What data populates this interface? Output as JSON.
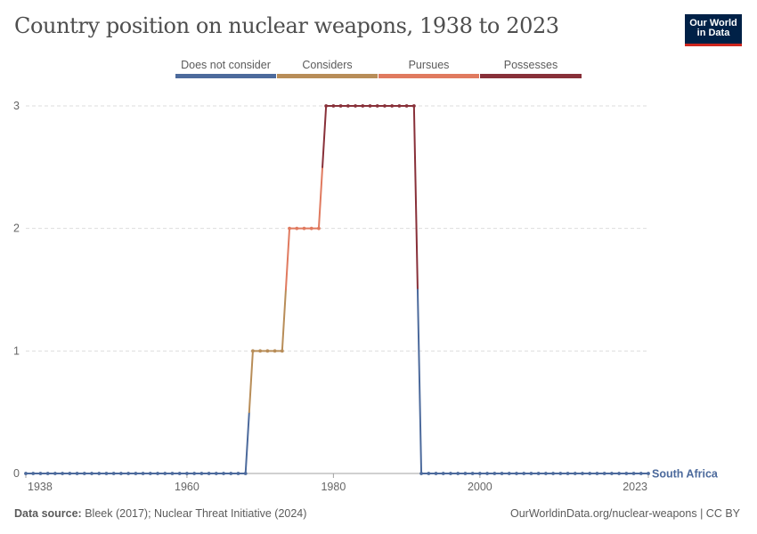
{
  "header": {
    "title": "Country position on nuclear weapons, 1938 to 2023"
  },
  "logo": {
    "line1": "Our World",
    "line2": "in Data",
    "bg_color": "#002147",
    "accent_color": "#ce261e"
  },
  "legend": {
    "items": [
      {
        "label": "Does not consider",
        "color": "#4c6a9c"
      },
      {
        "label": "Considers",
        "color": "#b88d58"
      },
      {
        "label": "Pursues",
        "color": "#e07a5f"
      },
      {
        "label": "Possesses",
        "color": "#883039"
      }
    ]
  },
  "footer": {
    "source_label": "Data source:",
    "source_text": " Bleek (2017); Nuclear Threat Initiative (2024)",
    "link_text": "OurWorldinData.org/nuclear-weapons",
    "license_text": " | CC BY"
  },
  "chart_data": {
    "type": "line",
    "title": "Country position on nuclear weapons, 1938 to 2023",
    "xlabel": "",
    "ylabel": "",
    "xlim": [
      1938,
      2023
    ],
    "ylim": [
      0,
      3
    ],
    "x_ticks": [
      "1938",
      "1960",
      "1980",
      "2000",
      "2023"
    ],
    "y_ticks": [
      "0",
      "1",
      "2",
      "3"
    ],
    "grid": "horizontal dashed",
    "legend_position": "top",
    "category_colors": [
      "#4c6a9c",
      "#b88d58",
      "#e07a5f",
      "#883039"
    ],
    "series": [
      {
        "name": "South Africa",
        "label_color": "#4c6a9c",
        "points": [
          {
            "x": 1938,
            "y": 0
          },
          {
            "x": 1939,
            "y": 0
          },
          {
            "x": 1940,
            "y": 0
          },
          {
            "x": 1941,
            "y": 0
          },
          {
            "x": 1942,
            "y": 0
          },
          {
            "x": 1943,
            "y": 0
          },
          {
            "x": 1944,
            "y": 0
          },
          {
            "x": 1945,
            "y": 0
          },
          {
            "x": 1946,
            "y": 0
          },
          {
            "x": 1947,
            "y": 0
          },
          {
            "x": 1948,
            "y": 0
          },
          {
            "x": 1949,
            "y": 0
          },
          {
            "x": 1950,
            "y": 0
          },
          {
            "x": 1951,
            "y": 0
          },
          {
            "x": 1952,
            "y": 0
          },
          {
            "x": 1953,
            "y": 0
          },
          {
            "x": 1954,
            "y": 0
          },
          {
            "x": 1955,
            "y": 0
          },
          {
            "x": 1956,
            "y": 0
          },
          {
            "x": 1957,
            "y": 0
          },
          {
            "x": 1958,
            "y": 0
          },
          {
            "x": 1959,
            "y": 0
          },
          {
            "x": 1960,
            "y": 0
          },
          {
            "x": 1961,
            "y": 0
          },
          {
            "x": 1962,
            "y": 0
          },
          {
            "x": 1963,
            "y": 0
          },
          {
            "x": 1964,
            "y": 0
          },
          {
            "x": 1965,
            "y": 0
          },
          {
            "x": 1966,
            "y": 0
          },
          {
            "x": 1967,
            "y": 0
          },
          {
            "x": 1968,
            "y": 0
          },
          {
            "x": 1969,
            "y": 1
          },
          {
            "x": 1970,
            "y": 1
          },
          {
            "x": 1971,
            "y": 1
          },
          {
            "x": 1972,
            "y": 1
          },
          {
            "x": 1973,
            "y": 1
          },
          {
            "x": 1974,
            "y": 2
          },
          {
            "x": 1975,
            "y": 2
          },
          {
            "x": 1976,
            "y": 2
          },
          {
            "x": 1977,
            "y": 2
          },
          {
            "x": 1978,
            "y": 2
          },
          {
            "x": 1979,
            "y": 3
          },
          {
            "x": 1980,
            "y": 3
          },
          {
            "x": 1981,
            "y": 3
          },
          {
            "x": 1982,
            "y": 3
          },
          {
            "x": 1983,
            "y": 3
          },
          {
            "x": 1984,
            "y": 3
          },
          {
            "x": 1985,
            "y": 3
          },
          {
            "x": 1986,
            "y": 3
          },
          {
            "x": 1987,
            "y": 3
          },
          {
            "x": 1988,
            "y": 3
          },
          {
            "x": 1989,
            "y": 3
          },
          {
            "x": 1990,
            "y": 3
          },
          {
            "x": 1991,
            "y": 3
          },
          {
            "x": 1992,
            "y": 0
          },
          {
            "x": 1993,
            "y": 0
          },
          {
            "x": 1994,
            "y": 0
          },
          {
            "x": 1995,
            "y": 0
          },
          {
            "x": 1996,
            "y": 0
          },
          {
            "x": 1997,
            "y": 0
          },
          {
            "x": 1998,
            "y": 0
          },
          {
            "x": 1999,
            "y": 0
          },
          {
            "x": 2000,
            "y": 0
          },
          {
            "x": 2001,
            "y": 0
          },
          {
            "x": 2002,
            "y": 0
          },
          {
            "x": 2003,
            "y": 0
          },
          {
            "x": 2004,
            "y": 0
          },
          {
            "x": 2005,
            "y": 0
          },
          {
            "x": 2006,
            "y": 0
          },
          {
            "x": 2007,
            "y": 0
          },
          {
            "x": 2008,
            "y": 0
          },
          {
            "x": 2009,
            "y": 0
          },
          {
            "x": 2010,
            "y": 0
          },
          {
            "x": 2011,
            "y": 0
          },
          {
            "x": 2012,
            "y": 0
          },
          {
            "x": 2013,
            "y": 0
          },
          {
            "x": 2014,
            "y": 0
          },
          {
            "x": 2015,
            "y": 0
          },
          {
            "x": 2016,
            "y": 0
          },
          {
            "x": 2017,
            "y": 0
          },
          {
            "x": 2018,
            "y": 0
          },
          {
            "x": 2019,
            "y": 0
          },
          {
            "x": 2020,
            "y": 0
          },
          {
            "x": 2021,
            "y": 0
          },
          {
            "x": 2022,
            "y": 0
          },
          {
            "x": 2023,
            "y": 0
          }
        ]
      }
    ]
  }
}
